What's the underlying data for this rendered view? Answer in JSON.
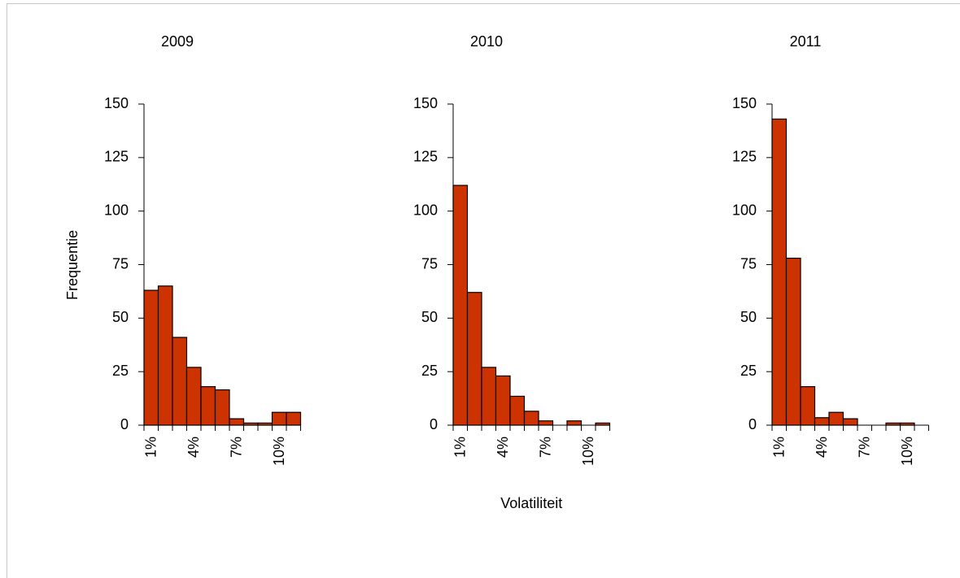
{
  "chart_data": [
    {
      "type": "bar",
      "title": "2009",
      "ylabel": "Frequentie",
      "categories": [
        "1%",
        null,
        null,
        "4%",
        null,
        null,
        "7%",
        null,
        null,
        "10%",
        null
      ],
      "values": [
        63,
        65,
        41,
        27,
        18,
        16.5,
        3,
        1,
        1,
        6,
        6
      ],
      "color": "#cc3300",
      "ylim": [
        0,
        150
      ],
      "yticks": [
        0,
        25,
        50,
        75,
        100,
        125,
        150
      ]
    },
    {
      "type": "bar",
      "title": "2010",
      "xlabel": "Volatiliteit",
      "categories": [
        "1%",
        null,
        null,
        "4%",
        null,
        null,
        "7%",
        null,
        null,
        "10%",
        null
      ],
      "values": [
        112,
        62,
        27,
        23,
        13.5,
        6.5,
        2,
        0,
        2,
        0,
        1
      ],
      "color": "#cc3300",
      "ylim": [
        0,
        150
      ],
      "yticks": [
        0,
        25,
        50,
        75,
        100,
        125,
        150
      ]
    },
    {
      "type": "bar",
      "title": "2011",
      "categories": [
        "1%",
        null,
        null,
        "4%",
        null,
        null,
        "7%",
        null,
        null,
        "10%",
        null
      ],
      "values": [
        143,
        78,
        18,
        3.5,
        6,
        3,
        0,
        0,
        1,
        1,
        0
      ],
      "color": "#cc3300",
      "ylim": [
        0,
        150
      ],
      "yticks": [
        0,
        25,
        50,
        75,
        100,
        125,
        150
      ]
    }
  ]
}
